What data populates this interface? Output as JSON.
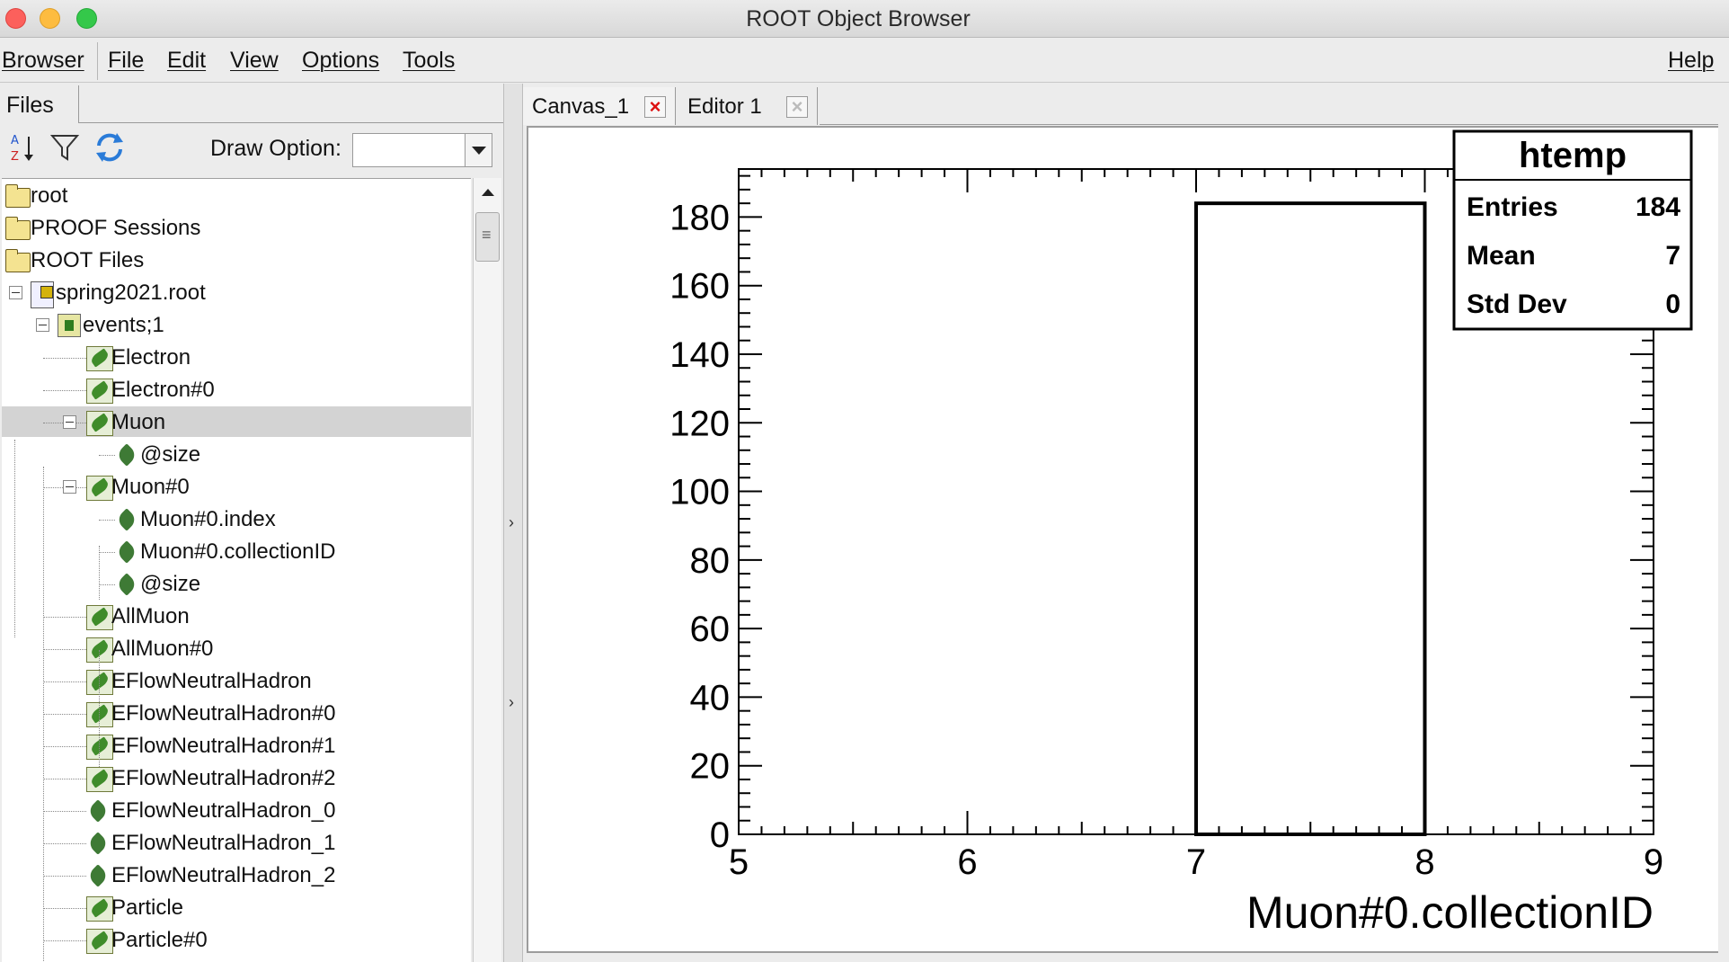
{
  "window": {
    "title": "ROOT Object Browser"
  },
  "menubar": {
    "items": [
      "Browser",
      "File",
      "Edit",
      "View",
      "Options",
      "Tools"
    ],
    "help": "Help"
  },
  "left_panel": {
    "tab": "Files",
    "draw_option_label": "Draw Option:",
    "draw_option_value": "",
    "toolbar_icons": [
      "sort-icon",
      "filter-icon",
      "refresh-icon"
    ],
    "tree": [
      {
        "label": "root",
        "icon": "folder-icon",
        "level": 0
      },
      {
        "label": "PROOF Sessions",
        "icon": "folder-icon",
        "level": 0
      },
      {
        "label": "ROOT Files",
        "icon": "folder-open-icon",
        "level": 0
      },
      {
        "label": "spring2021.root",
        "icon": "root-file-icon",
        "level": 1,
        "expanded": true
      },
      {
        "label": "events;1",
        "icon": "tree-icon",
        "level": 2,
        "expanded": true
      },
      {
        "label": "Electron",
        "icon": "branch-icon",
        "level": 3
      },
      {
        "label": "Electron#0",
        "icon": "branch-icon",
        "level": 3
      },
      {
        "label": "Muon",
        "icon": "branch-icon",
        "level": 3,
        "expanded": true,
        "selected": true
      },
      {
        "label": "@size",
        "icon": "leaf-icon",
        "level": 4
      },
      {
        "label": "Muon#0",
        "icon": "branch-icon",
        "level": 3,
        "expanded": true
      },
      {
        "label": "Muon#0.index",
        "icon": "leaf-icon",
        "level": 4
      },
      {
        "label": "Muon#0.collectionID",
        "icon": "leaf-icon",
        "level": 4
      },
      {
        "label": "@size",
        "icon": "leaf-icon",
        "level": 4
      },
      {
        "label": "AllMuon",
        "icon": "branch-icon",
        "level": 3
      },
      {
        "label": "AllMuon#0",
        "icon": "branch-icon",
        "level": 3
      },
      {
        "label": "EFlowNeutralHadron",
        "icon": "branch-icon",
        "level": 3
      },
      {
        "label": "EFlowNeutralHadron#0",
        "icon": "branch-icon",
        "level": 3
      },
      {
        "label": "EFlowNeutralHadron#1",
        "icon": "branch-icon",
        "level": 3
      },
      {
        "label": "EFlowNeutralHadron#2",
        "icon": "branch-icon",
        "level": 3
      },
      {
        "label": "EFlowNeutralHadron_0",
        "icon": "leaf-icon",
        "level": 3
      },
      {
        "label": "EFlowNeutralHadron_1",
        "icon": "leaf-icon",
        "level": 3
      },
      {
        "label": "EFlowNeutralHadron_2",
        "icon": "leaf-icon",
        "level": 3
      },
      {
        "label": "Particle",
        "icon": "branch-icon",
        "level": 3
      },
      {
        "label": "Particle#0",
        "icon": "branch-icon",
        "level": 3
      }
    ]
  },
  "tabs": [
    {
      "label": "Canvas_1",
      "active": true
    },
    {
      "label": "Editor 1",
      "active": false
    }
  ],
  "stats_box": {
    "title": "htemp",
    "rows": [
      {
        "name": "Entries",
        "value": "184"
      },
      {
        "name": "Mean",
        "value": "7"
      },
      {
        "name": "Std Dev",
        "value": "0"
      }
    ]
  },
  "chart_data": {
    "type": "bar",
    "title": "",
    "xlabel": "Muon#0.collectionID",
    "ylabel": "",
    "xlim": [
      5,
      9
    ],
    "ylim": [
      0,
      194
    ],
    "x_ticks": [
      "5",
      "6",
      "7",
      "8",
      "9"
    ],
    "y_ticks": [
      "0",
      "20",
      "40",
      "60",
      "80",
      "100",
      "120",
      "140",
      "160",
      "180"
    ],
    "bins": [
      {
        "low": 7,
        "high": 8,
        "count": 184
      }
    ],
    "grid": false
  }
}
